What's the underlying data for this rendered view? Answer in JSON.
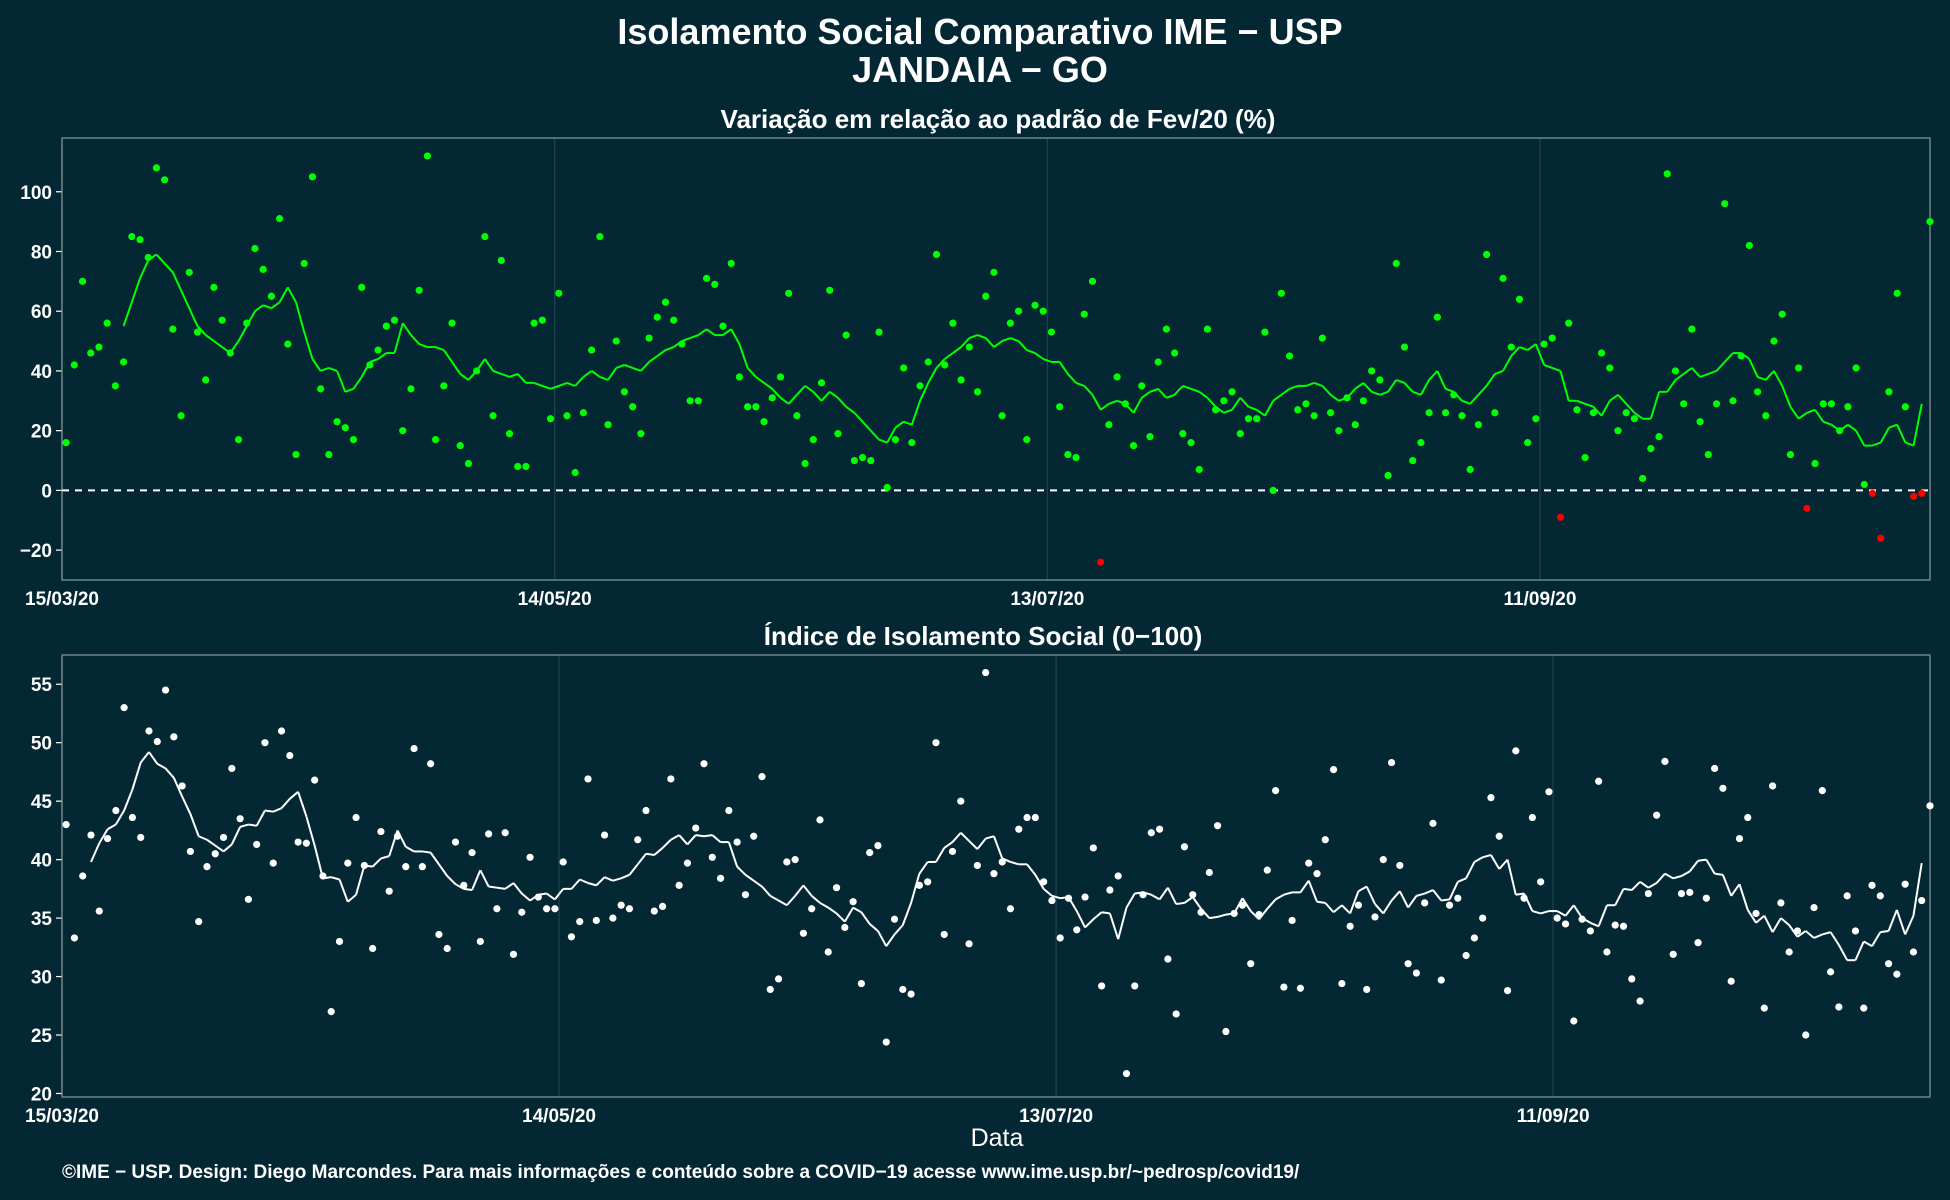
{
  "title_line1": "Isolamento Social Comparativo IME − USP",
  "title_line2": "JANDAIA − GO",
  "footer": "©IME − USP. Design: Diego Marcondes. Para mais informações e conteúdo sobre a COVID−19 acesse www.ime.usp.br/~pedrosp/covid19/",
  "colors": {
    "background": "#032733",
    "positive": "#00ff00",
    "negative": "#ff0000",
    "index": "#ffffff",
    "grid": "#1f4552"
  },
  "chart_data": [
    {
      "type": "scatter",
      "title": "Variação em relação ao padrão de Fev/20 (%)",
      "x_start": "15/03/20",
      "x_end": "22/11/20",
      "x_ticks": [
        "15/03/20",
        "14/05/20",
        "13/07/20",
        "11/09/20"
      ],
      "y_ticks": [
        -20,
        0,
        20,
        40,
        60,
        80,
        100
      ],
      "ylim": [
        -30,
        118
      ],
      "reference_line": 0,
      "series": [
        {
          "kind": "points",
          "values": [
            16,
            42,
            70,
            46,
            48,
            56,
            35,
            43,
            85,
            84,
            78,
            108,
            104,
            54,
            25,
            73,
            53,
            37,
            68,
            57,
            46,
            17,
            56,
            81,
            74,
            65,
            91,
            49,
            12,
            76,
            105,
            34,
            12,
            23,
            21,
            17,
            68,
            42,
            47,
            55,
            57,
            20,
            34,
            67,
            112,
            17,
            35,
            56,
            15,
            9,
            40,
            85,
            25,
            77,
            19,
            8,
            8,
            56,
            57,
            24,
            66,
            25,
            6,
            26,
            47,
            85,
            22,
            50,
            33,
            28,
            19,
            51,
            58,
            63,
            57,
            49,
            30,
            30,
            71,
            69,
            55,
            76,
            38,
            28,
            28,
            23,
            31,
            38,
            66,
            25,
            9,
            17,
            36,
            67,
            19,
            52,
            10,
            11,
            10,
            53,
            1,
            17,
            41,
            16,
            35,
            43,
            79,
            42,
            56,
            37,
            48,
            33,
            65,
            73,
            25,
            56,
            60,
            17,
            62,
            60,
            53,
            28,
            12,
            11,
            59,
            70,
            -24,
            22,
            38,
            29,
            15,
            35,
            18,
            43,
            54,
            46,
            19,
            16,
            7,
            54,
            27,
            30,
            33,
            19,
            24,
            24,
            53,
            0,
            66,
            45,
            27,
            29,
            25,
            51,
            26,
            20,
            31,
            22,
            30,
            40,
            37,
            5,
            76,
            48,
            10,
            16,
            26,
            58,
            26,
            32,
            25,
            7,
            22,
            79,
            26,
            71,
            48,
            64,
            16,
            24,
            49,
            51,
            -9,
            56,
            27,
            11,
            26,
            46,
            41,
            20,
            26,
            24,
            4,
            14,
            18,
            106,
            40,
            29,
            54,
            23,
            12,
            29,
            96,
            30,
            45,
            82,
            33,
            25,
            50,
            59,
            12,
            41,
            -6,
            9,
            29,
            29,
            20,
            28,
            41,
            2,
            -1,
            -16,
            33,
            66,
            28,
            -2,
            -1,
            90
          ]
        },
        {
          "kind": "moving_average",
          "values": [
            null,
            null,
            null,
            null,
            null,
            null,
            null,
            55,
            63,
            71,
            77,
            79,
            76,
            73,
            67,
            61,
            55,
            52,
            50,
            48,
            46,
            50,
            55,
            60,
            62,
            61,
            63,
            68,
            63,
            53,
            44,
            40,
            41,
            40,
            33,
            34,
            38,
            43,
            44,
            46,
            46,
            56,
            52,
            49,
            48,
            48,
            47,
            43,
            39,
            37,
            40,
            44,
            40,
            39,
            38,
            39,
            36,
            36,
            35,
            34,
            35,
            36,
            35,
            38,
            40,
            38,
            37,
            41,
            42,
            41,
            40,
            43,
            45,
            47,
            48,
            50,
            51,
            52,
            54,
            52,
            52,
            54,
            49,
            41,
            38,
            36,
            34,
            31,
            29,
            32,
            35,
            33,
            30,
            33,
            31,
            28,
            26,
            23,
            20,
            17,
            16,
            21,
            23,
            22,
            30,
            36,
            41,
            44,
            46,
            48,
            51,
            52,
            51,
            48,
            50,
            51,
            50,
            47,
            46,
            44,
            43,
            43,
            39,
            36,
            35,
            32,
            27,
            29,
            30,
            29,
            26,
            31,
            33,
            34,
            31,
            32,
            35,
            34,
            33,
            31,
            28,
            26,
            27,
            31,
            28,
            27,
            25,
            30,
            32,
            34,
            35,
            35,
            36,
            35,
            32,
            30,
            31,
            34,
            36,
            33,
            32,
            33,
            37,
            36,
            33,
            32,
            37,
            40,
            34,
            33,
            30,
            29,
            32,
            35,
            39,
            40,
            45,
            48,
            47,
            49,
            42,
            41,
            40,
            30,
            30,
            29,
            28,
            25,
            30,
            32,
            29,
            26,
            24,
            24,
            33,
            33,
            37,
            39,
            41,
            38,
            39,
            40,
            43,
            46,
            46,
            44,
            38,
            37,
            40,
            35,
            28,
            24,
            26,
            27,
            23,
            22,
            20,
            22,
            20,
            15,
            15,
            16,
            21,
            22,
            16,
            15,
            29
          ]
        }
      ]
    },
    {
      "type": "scatter",
      "title": "Índice de Isolamento Social (0−100)",
      "xlabel": "Data",
      "x_start": "15/03/20",
      "x_end": "22/11/20",
      "x_ticks": [
        "15/03/20",
        "14/05/20",
        "13/07/20",
        "11/09/20"
      ],
      "y_ticks": [
        20,
        25,
        30,
        35,
        40,
        45,
        50,
        55
      ],
      "ylim": [
        19.7,
        57.5
      ],
      "series": [
        {
          "kind": "points",
          "values": [
            43,
            33.3,
            38.6,
            42.1,
            35.6,
            41.8,
            44.2,
            53,
            43.6,
            41.9,
            51,
            50.1,
            54.5,
            50.5,
            46.3,
            40.7,
            34.7,
            39.4,
            40.5,
            41.9,
            47.8,
            43.5,
            36.6,
            41.3,
            50,
            39.7,
            51,
            48.9,
            41.5,
            41.4,
            46.8,
            38.6,
            27,
            33,
            39.7,
            43.6,
            39.5,
            32.4,
            42.4,
            37.3,
            42,
            39.4,
            49.5,
            39.4,
            48.2,
            33.6,
            32.4,
            41.5,
            37.8,
            40.6,
            33,
            42.2,
            35.8,
            42.3,
            31.9,
            35.5,
            40.2,
            36.8,
            35.8,
            35.8,
            39.8,
            33.4,
            34.7,
            46.9,
            34.8,
            42.1,
            35,
            36.1,
            35.8,
            41.7,
            44.2,
            35.6,
            36,
            46.9,
            37.8,
            39.7,
            42.7,
            48.2,
            40.2,
            38.4,
            44.2,
            41.5,
            37,
            42,
            47.1,
            28.9,
            29.8,
            39.8,
            40,
            33.7,
            35.8,
            43.4,
            32.1,
            37.6,
            34.2,
            36.4,
            29.4,
            40.6,
            41.2,
            24.4,
            34.9,
            28.9,
            28.5,
            37.8,
            38.1,
            50,
            33.6,
            40.7,
            45,
            32.8,
            39.5,
            56,
            38.8,
            39.8,
            35.8,
            42.6,
            43.6,
            43.6,
            38.1,
            36.5,
            33.3,
            36.7,
            34,
            36.8,
            41,
            29.2,
            37.4,
            38.6,
            21.7,
            29.2,
            37,
            42.3,
            42.6,
            31.5,
            26.8,
            41.1,
            37,
            35.5,
            38.9,
            42.9,
            25.3,
            35.4,
            36.1,
            31.1,
            35.3,
            39.1,
            45.9,
            29.1,
            34.8,
            29,
            39.7,
            38.8,
            41.7,
            47.7,
            29.4,
            34.3,
            36.1,
            28.9,
            35.1,
            40,
            48.3,
            39.5,
            31.1,
            30.3,
            36.3,
            43.1,
            29.7,
            36.1,
            36.7,
            31.8,
            33.3,
            35,
            45.3,
            42,
            28.8,
            49.3,
            36.7,
            43.6,
            38.1,
            45.8,
            35,
            34.5,
            26.2,
            34.9,
            33.9,
            46.7,
            32.1,
            34.4,
            34.3,
            29.8,
            27.9,
            37.1,
            43.8,
            48.4,
            31.9,
            37.1,
            37.2,
            32.9,
            36.7,
            47.8,
            46.1,
            29.6,
            41.8,
            43.6,
            35.4,
            27.3,
            46.3,
            36.3,
            32.1,
            33.9,
            25,
            35.9,
            45.9,
            30.4,
            27.4,
            36.9,
            33.9,
            27.3,
            37.8,
            36.9,
            31.1,
            30.2,
            37.9,
            32.1,
            36.5,
            44.6
          ]
        },
        {
          "kind": "moving_average",
          "values": [
            null,
            null,
            null,
            39.8,
            41.4,
            42.6,
            43,
            44.2,
            46,
            48.3,
            49.2,
            48.2,
            47.8,
            47,
            45.4,
            43.9,
            42,
            41.7,
            41.2,
            40.7,
            41.3,
            42.8,
            43,
            42.9,
            44.2,
            44.1,
            44.4,
            45.2,
            45.8,
            43.7,
            41.2,
            38.4,
            38.5,
            38.3,
            36.4,
            37,
            39.5,
            39.4,
            40.1,
            40.3,
            42.5,
            41.1,
            40.7,
            40.7,
            40.6,
            39.6,
            38.6,
            37.9,
            37.5,
            37.4,
            39.1,
            37.7,
            37.6,
            37.5,
            38,
            37.1,
            36.5,
            37,
            37.1,
            36.6,
            37.5,
            37.5,
            38.3,
            38,
            37.8,
            38.5,
            38.2,
            38.4,
            38.7,
            39.6,
            40.5,
            40.4,
            41,
            41.7,
            42.1,
            41.3,
            42.1,
            42,
            42.1,
            41.5,
            41.5,
            39.4,
            38.7,
            38.2,
            37.7,
            36.9,
            36.5,
            36.1,
            36.9,
            37.8,
            36.9,
            36.3,
            35.9,
            35.4,
            34.7,
            35.9,
            35.5,
            34.5,
            33.9,
            32.6,
            33.6,
            34.4,
            36.3,
            38.8,
            39.8,
            39.8,
            41,
            41.5,
            42.3,
            41.6,
            40.9,
            41.8,
            42,
            40.1,
            39.8,
            39.6,
            39.6,
            38.7,
            37.5,
            36.9,
            36.7,
            36.8,
            35.6,
            34.2,
            34.9,
            35.5,
            35.4,
            33.2,
            35.9,
            37.1,
            37.2,
            37,
            36.6,
            37.6,
            36.2,
            36.3,
            36.8,
            35.8,
            35,
            35.1,
            35.3,
            35.4,
            36.7,
            35.6,
            34.9,
            35.8,
            36.6,
            37,
            37.2,
            37.2,
            38.2,
            36.4,
            36.3,
            35.5,
            36.1,
            35.4,
            37.3,
            37.7,
            36.2,
            35.4,
            36.5,
            37.3,
            35.9,
            36.9,
            37.1,
            37.4,
            36.5,
            36.6,
            38.1,
            38.4,
            39.8,
            40.2,
            40.4,
            39.2,
            40,
            37,
            37.1,
            35.6,
            35.4,
            35.6,
            35.6,
            35.2,
            36.1,
            35,
            34.6,
            34.3,
            36.1,
            36.1,
            37.5,
            37.4,
            38.1,
            37.6,
            38,
            38.8,
            38.4,
            38.6,
            39,
            39.9,
            40,
            38.8,
            38.7,
            36.9,
            37.9,
            35.7,
            34.6,
            35.2,
            33.8,
            35,
            34.4,
            33.4,
            33.9,
            33.3,
            33.6,
            33.8,
            32.7,
            31.4,
            31.4,
            33,
            32.6,
            33.8,
            33.9,
            35.7,
            33.6,
            35.2,
            39.7
          ]
        }
      ]
    }
  ]
}
